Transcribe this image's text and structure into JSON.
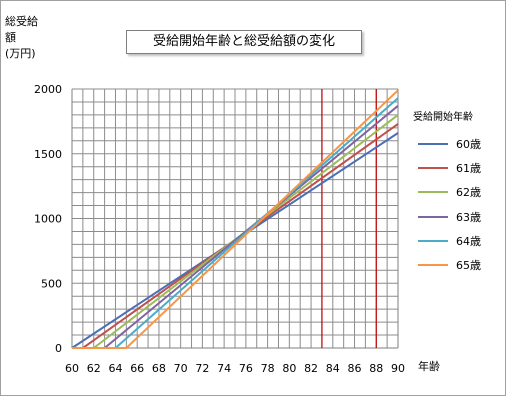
{
  "chart_data": {
    "type": "line",
    "title": "受給開始年齢と総受給額の変化",
    "ylabel_lines": [
      "総受給",
      "額",
      "(万円)"
    ],
    "xlabel": "年齢",
    "legend_title": "受給開始年齢",
    "x_ticks": [
      60,
      62,
      64,
      66,
      68,
      70,
      72,
      74,
      76,
      78,
      80,
      82,
      84,
      86,
      88,
      90
    ],
    "y_ticks": [
      0,
      500,
      1000,
      1500,
      2000
    ],
    "xlim": [
      60,
      90
    ],
    "ylim": [
      0,
      2000
    ],
    "grid": true,
    "legend_position": "right",
    "vertical_markers": [
      83,
      88
    ],
    "marker_color": "#c00000",
    "series": [
      {
        "name": "60歳",
        "color": "#4a6fb5",
        "points": [
          [
            60,
            0
          ],
          [
            90,
            1660
          ]
        ]
      },
      {
        "name": "61歳",
        "color": "#c0504d",
        "points": [
          [
            60,
            0
          ],
          [
            61,
            0
          ],
          [
            90,
            1730
          ]
        ]
      },
      {
        "name": "62歳",
        "color": "#9bbb59",
        "points": [
          [
            60,
            0
          ],
          [
            62,
            0
          ],
          [
            90,
            1800
          ]
        ]
      },
      {
        "name": "63歳",
        "color": "#8064a2",
        "points": [
          [
            60,
            0
          ],
          [
            63,
            0
          ],
          [
            90,
            1870
          ]
        ]
      },
      {
        "name": "64歳",
        "color": "#4bacc6",
        "points": [
          [
            60,
            0
          ],
          [
            64,
            0
          ],
          [
            90,
            1930
          ]
        ]
      },
      {
        "name": "65歳",
        "color": "#f79646",
        "points": [
          [
            60,
            0
          ],
          [
            65,
            0
          ],
          [
            90,
            1990
          ]
        ]
      }
    ]
  }
}
